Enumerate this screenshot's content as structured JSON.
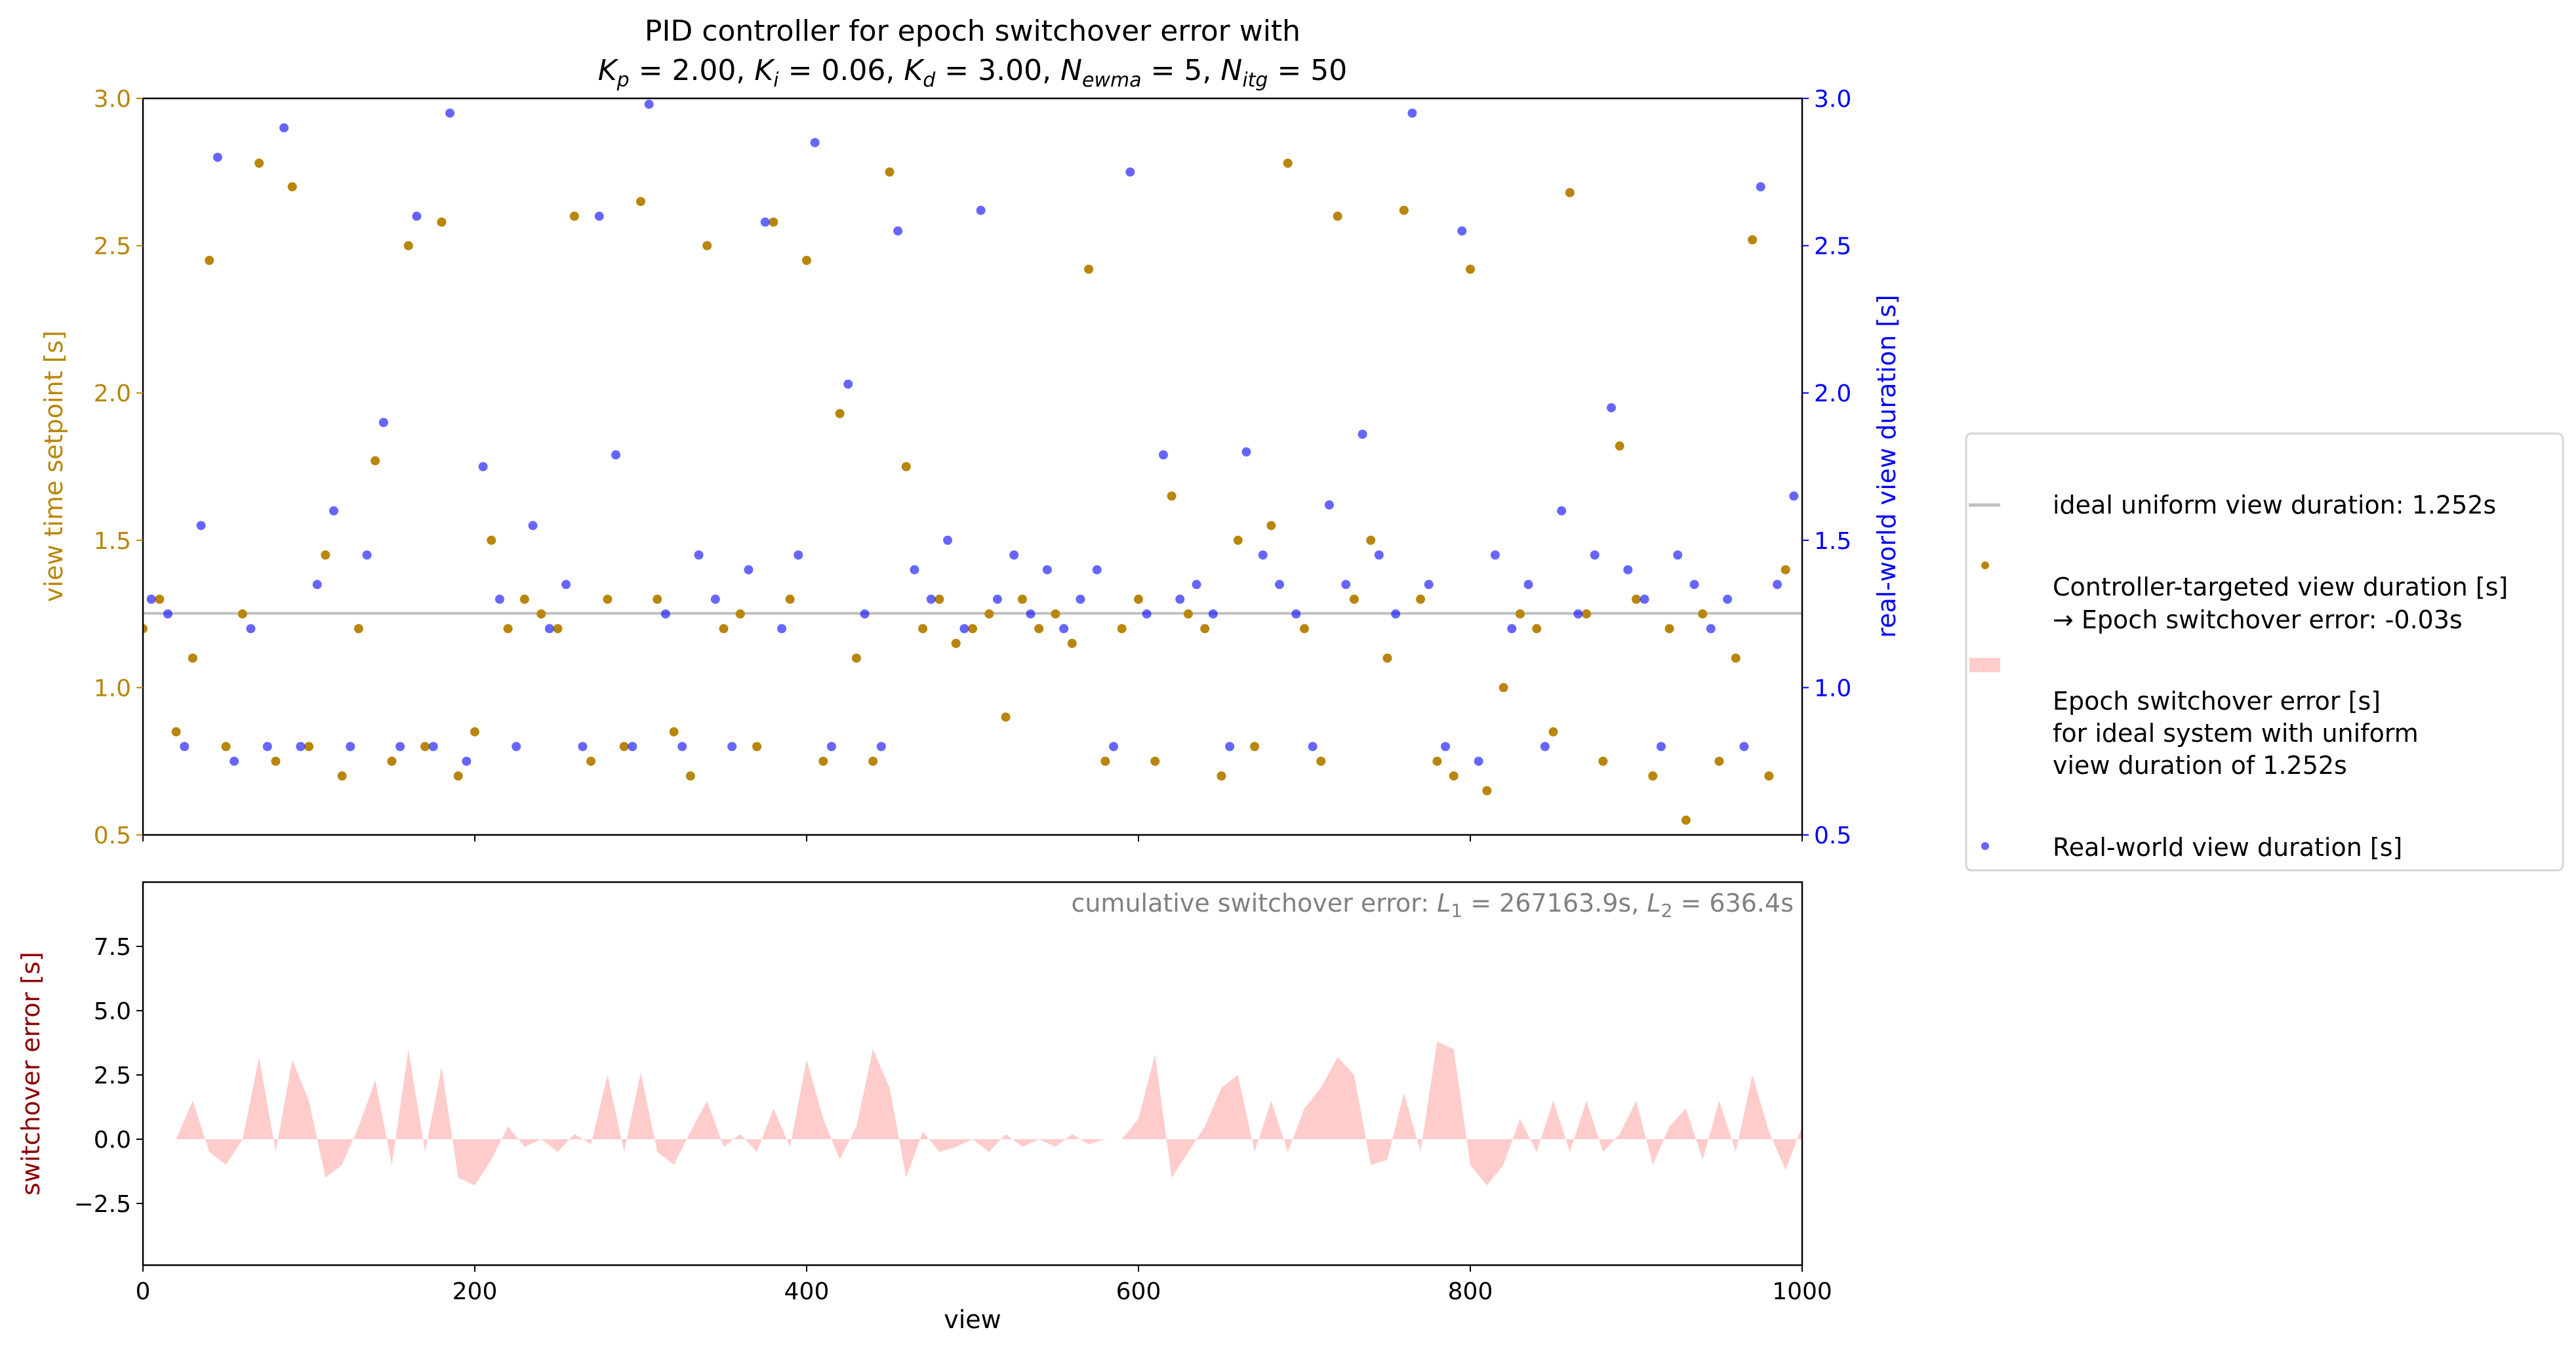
{
  "chart_data": [
    {
      "type": "scatter",
      "title_line1": "PID controller for epoch switchover error with",
      "title_params": [
        {
          "sym": "K",
          "sub": "p",
          "val": "2.00"
        },
        {
          "sym": "K",
          "sub": "i",
          "val": "0.06"
        },
        {
          "sym": "K",
          "sub": "d",
          "val": "3.00"
        },
        {
          "sym": "N",
          "sub": "ewma",
          "val": "5"
        },
        {
          "sym": "N",
          "sub": "itg",
          "val": "50"
        }
      ],
      "ylabel_left": "view time setpoint [s]",
      "ylabel_right": "real-world view duration [s]",
      "xlim": [
        0,
        1000
      ],
      "ylim": [
        0.5,
        3.0
      ],
      "yticks": [
        "0.5",
        "1.0",
        "1.5",
        "2.0",
        "2.5",
        "3.0"
      ],
      "ideal_duration": 1.252,
      "colors": {
        "targeted": "#b8860b",
        "real": "#0000ff",
        "ideal": "#bfbfbf",
        "error": "#ffcccc",
        "left_axis": "#b8860b",
        "right_axis": "#0000ff"
      },
      "series": [
        {
          "name": "Controller-targeted view duration [s]",
          "x": [
            0,
            10,
            20,
            30,
            40,
            50,
            60,
            70,
            80,
            90,
            100,
            110,
            120,
            130,
            140,
            150,
            160,
            170,
            180,
            190,
            200,
            210,
            220,
            230,
            240,
            250,
            260,
            270,
            280,
            290,
            300,
            310,
            320,
            330,
            340,
            350,
            360,
            370,
            380,
            390,
            400,
            410,
            420,
            430,
            440,
            450,
            460,
            470,
            480,
            490,
            500,
            510,
            520,
            530,
            540,
            550,
            560,
            570,
            580,
            590,
            600,
            610,
            620,
            630,
            640,
            650,
            660,
            670,
            680,
            690,
            700,
            710,
            720,
            730,
            740,
            750,
            760,
            770,
            780,
            790,
            800,
            810,
            820,
            830,
            840,
            850,
            860,
            870,
            880,
            890,
            900,
            910,
            920,
            930,
            940,
            950,
            960,
            970,
            980,
            990
          ],
          "y": [
            1.2,
            1.3,
            0.85,
            1.1,
            2.45,
            0.8,
            1.25,
            2.78,
            0.75,
            2.7,
            0.8,
            1.45,
            0.7,
            1.2,
            1.77,
            0.75,
            2.5,
            0.8,
            2.58,
            0.7,
            0.85,
            1.5,
            1.2,
            1.3,
            1.25,
            1.2,
            2.6,
            0.75,
            1.3,
            0.8,
            2.65,
            1.3,
            0.85,
            0.7,
            2.5,
            1.2,
            1.25,
            0.8,
            2.58,
            1.3,
            2.45,
            0.75,
            1.93,
            1.1,
            0.75,
            2.75,
            1.75,
            1.2,
            1.3,
            1.15,
            1.2,
            1.25,
            0.9,
            1.3,
            1.2,
            1.25,
            1.15,
            2.42,
            0.75,
            1.2,
            1.3,
            0.75,
            1.65,
            1.25,
            1.2,
            0.7,
            1.5,
            0.8,
            1.55,
            2.78,
            1.2,
            0.75,
            2.6,
            1.3,
            1.5,
            1.1,
            2.62,
            1.3,
            0.75,
            0.7,
            2.42,
            0.65,
            1.0,
            1.25,
            1.2,
            0.85,
            2.68,
            1.25,
            0.75,
            1.82,
            1.3,
            0.7,
            1.2,
            0.55,
            1.25,
            0.75,
            1.1,
            2.52,
            0.7,
            1.4
          ]
        },
        {
          "name": "Real-world view duration [s]",
          "x": [
            5,
            15,
            25,
            35,
            45,
            55,
            65,
            75,
            85,
            95,
            105,
            115,
            125,
            135,
            145,
            155,
            165,
            175,
            185,
            195,
            205,
            215,
            225,
            235,
            245,
            255,
            265,
            275,
            285,
            295,
            305,
            315,
            325,
            335,
            345,
            355,
            365,
            375,
            385,
            395,
            405,
            415,
            425,
            435,
            445,
            455,
            465,
            475,
            485,
            495,
            505,
            515,
            525,
            535,
            545,
            555,
            565,
            575,
            585,
            595,
            605,
            615,
            625,
            635,
            645,
            655,
            665,
            675,
            685,
            695,
            705,
            715,
            725,
            735,
            745,
            755,
            765,
            775,
            785,
            795,
            805,
            815,
            825,
            835,
            845,
            855,
            865,
            875,
            885,
            895,
            905,
            915,
            925,
            935,
            945,
            955,
            965,
            975,
            985,
            995
          ],
          "y": [
            1.3,
            1.25,
            0.8,
            1.55,
            2.8,
            0.75,
            1.2,
            0.8,
            2.9,
            0.8,
            1.35,
            1.6,
            0.8,
            1.45,
            1.9,
            0.8,
            2.6,
            0.8,
            2.95,
            0.75,
            1.75,
            1.3,
            0.8,
            1.55,
            1.2,
            1.35,
            0.8,
            2.6,
            1.79,
            0.8,
            2.98,
            1.25,
            0.8,
            1.45,
            1.3,
            0.8,
            1.4,
            2.58,
            1.2,
            1.45,
            2.85,
            0.8,
            2.03,
            1.25,
            0.8,
            2.55,
            1.4,
            1.3,
            1.5,
            1.2,
            2.62,
            1.3,
            1.45,
            1.25,
            1.4,
            1.2,
            1.3,
            1.4,
            0.8,
            2.75,
            1.25,
            1.79,
            1.3,
            1.35,
            1.25,
            0.8,
            1.8,
            1.45,
            1.35,
            1.25,
            0.8,
            1.62,
            1.35,
            1.86,
            1.45,
            1.25,
            2.95,
            1.35,
            0.8,
            2.55,
            0.75,
            1.45,
            1.2,
            1.35,
            0.8,
            1.6,
            1.25,
            1.45,
            1.95,
            1.4,
            1.3,
            0.8,
            1.45,
            1.35,
            1.2,
            1.3,
            0.8,
            2.7,
            1.35,
            1.65
          ]
        }
      ],
      "legend": {
        "placement": "right",
        "ideal": "ideal uniform view duration: 1.252s",
        "targeted": [
          "Controller-targeted view duration [s]",
          "→ Epoch switchover error: -0.03s"
        ],
        "error": [
          "Epoch switchover error [s]",
          "for ideal system with uniform",
          "view duration of 1.252s"
        ],
        "real": "Real-world view duration [s]"
      }
    },
    {
      "type": "area",
      "xlabel": "view",
      "ylabel": "switchover error [s]",
      "xlim": [
        0,
        1000
      ],
      "ylim": [
        -4.9,
        10.0
      ],
      "xticks": [
        "0",
        "200",
        "400",
        "600",
        "800",
        "1000"
      ],
      "yticks": [
        "−2.5",
        "0.0",
        "2.5",
        "5.0",
        "7.5"
      ],
      "ylabel_color": "#8b0000",
      "annotation": {
        "prefix": "cumulative switchover error: ",
        "l1_label": "L",
        "l1_sub": "1",
        "l1_val": "267163.9s",
        "l2_label": "L",
        "l2_sub": "2",
        "l2_val": "636.4s"
      },
      "x": [
        0,
        10,
        20,
        30,
        40,
        50,
        60,
        70,
        80,
        90,
        100,
        110,
        120,
        130,
        140,
        150,
        160,
        170,
        180,
        190,
        200,
        210,
        220,
        230,
        240,
        250,
        260,
        270,
        280,
        290,
        300,
        310,
        320,
        330,
        340,
        350,
        360,
        370,
        380,
        390,
        400,
        410,
        420,
        430,
        440,
        450,
        460,
        470,
        480,
        490,
        500,
        510,
        520,
        530,
        540,
        550,
        560,
        570,
        580,
        590,
        600,
        610,
        620,
        630,
        640,
        650,
        660,
        670,
        680,
        690,
        700,
        710,
        720,
        730,
        740,
        750,
        760,
        770,
        780,
        790,
        800,
        810,
        820,
        830,
        840,
        850,
        860,
        870,
        880,
        890,
        900,
        910,
        920,
        930,
        940,
        950,
        960,
        970,
        980,
        990,
        1000
      ],
      "y": [
        0,
        0,
        0,
        1.5,
        -0.5,
        -1,
        0,
        3.2,
        -0.5,
        3.1,
        1.5,
        -1.5,
        -1,
        0.5,
        2.3,
        -1,
        3.5,
        -0.5,
        2.8,
        -1.5,
        -1.8,
        -0.8,
        0.5,
        -0.3,
        0,
        -0.5,
        0.2,
        -0.2,
        2.5,
        -0.5,
        2.6,
        -0.5,
        -1,
        0.3,
        1.5,
        -0.3,
        0.2,
        -0.5,
        1.2,
        -0.3,
        3.1,
        0.8,
        -0.8,
        0.5,
        3.5,
        2,
        -1.5,
        0.3,
        -0.5,
        -0.3,
        0,
        -0.5,
        0.2,
        -0.3,
        0,
        -0.3,
        0.2,
        -0.2,
        0,
        0,
        0.8,
        3.3,
        -1.5,
        -0.5,
        0.5,
        2,
        2.5,
        -0.5,
        1.5,
        -0.5,
        1.2,
        2,
        3.2,
        2.5,
        -1,
        -0.8,
        1.8,
        -0.5,
        3.8,
        3.5,
        -1,
        -1.8,
        -1,
        0.8,
        -0.5,
        1.5,
        -0.5,
        1.5,
        -0.5,
        0.2,
        1.5,
        -1,
        0.5,
        1.2,
        -0.8,
        1.5,
        -0.5,
        2.5,
        0.3,
        -1.2,
        0.5
      ]
    }
  ]
}
